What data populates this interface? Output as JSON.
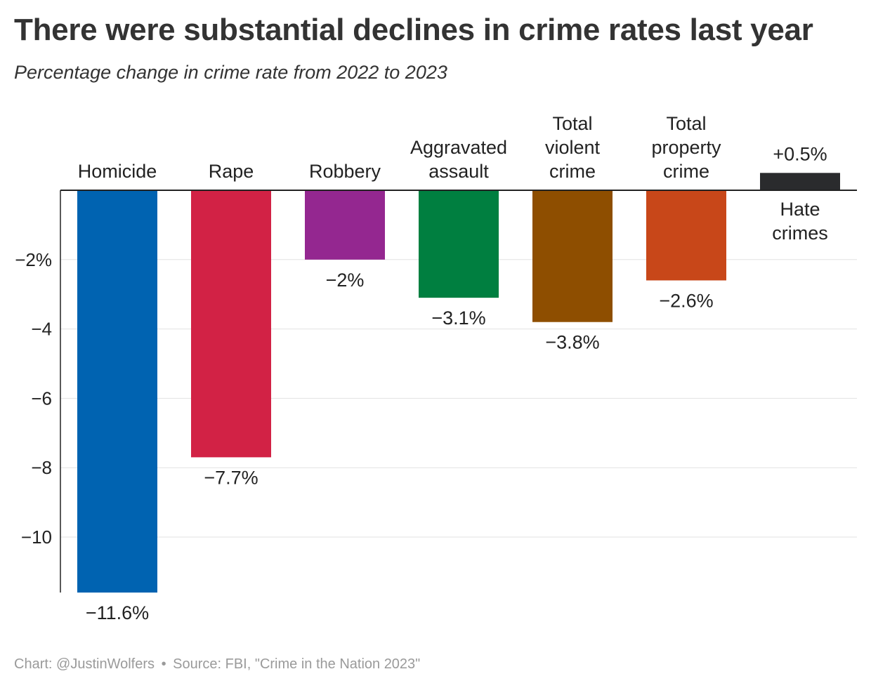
{
  "title": "There were substantial declines in crime rates last year",
  "subtitle": "Percentage change in crime rate from 2022 to 2023",
  "footer": {
    "chart_credit": "Chart: @JustinWolfers",
    "separator": "•",
    "source": "Source: FBI, \"Crime in the Nation 2023\""
  },
  "chart_data": {
    "type": "bar",
    "categories": [
      [
        "Homicide"
      ],
      [
        "Rape"
      ],
      [
        "Robbery"
      ],
      [
        "Aggravated",
        "assault"
      ],
      [
        "Total",
        "violent",
        "crime"
      ],
      [
        "Total",
        "property",
        "crime"
      ],
      [
        "Hate",
        "crimes"
      ]
    ],
    "values": [
      -11.6,
      -7.7,
      -2.0,
      -3.1,
      -3.8,
      -2.6,
      0.5
    ],
    "data_labels": [
      "−11.6%",
      "−7.7%",
      "−2%",
      "−3.1%",
      "−3.8%",
      "−2.6%",
      "+0.5%"
    ],
    "colors": [
      "#0063b1",
      "#d22245",
      "#942790",
      "#007f40",
      "#8e4e00",
      "#c84719",
      "#2a2b2d"
    ],
    "yticks": [
      -2,
      -4,
      -6,
      -8,
      -10
    ],
    "ytick_labels": [
      "−2%",
      "−4",
      "−6",
      "−8",
      "−10"
    ],
    "ylim": [
      -11.6,
      0.5
    ],
    "grid": true,
    "legend": "none"
  }
}
